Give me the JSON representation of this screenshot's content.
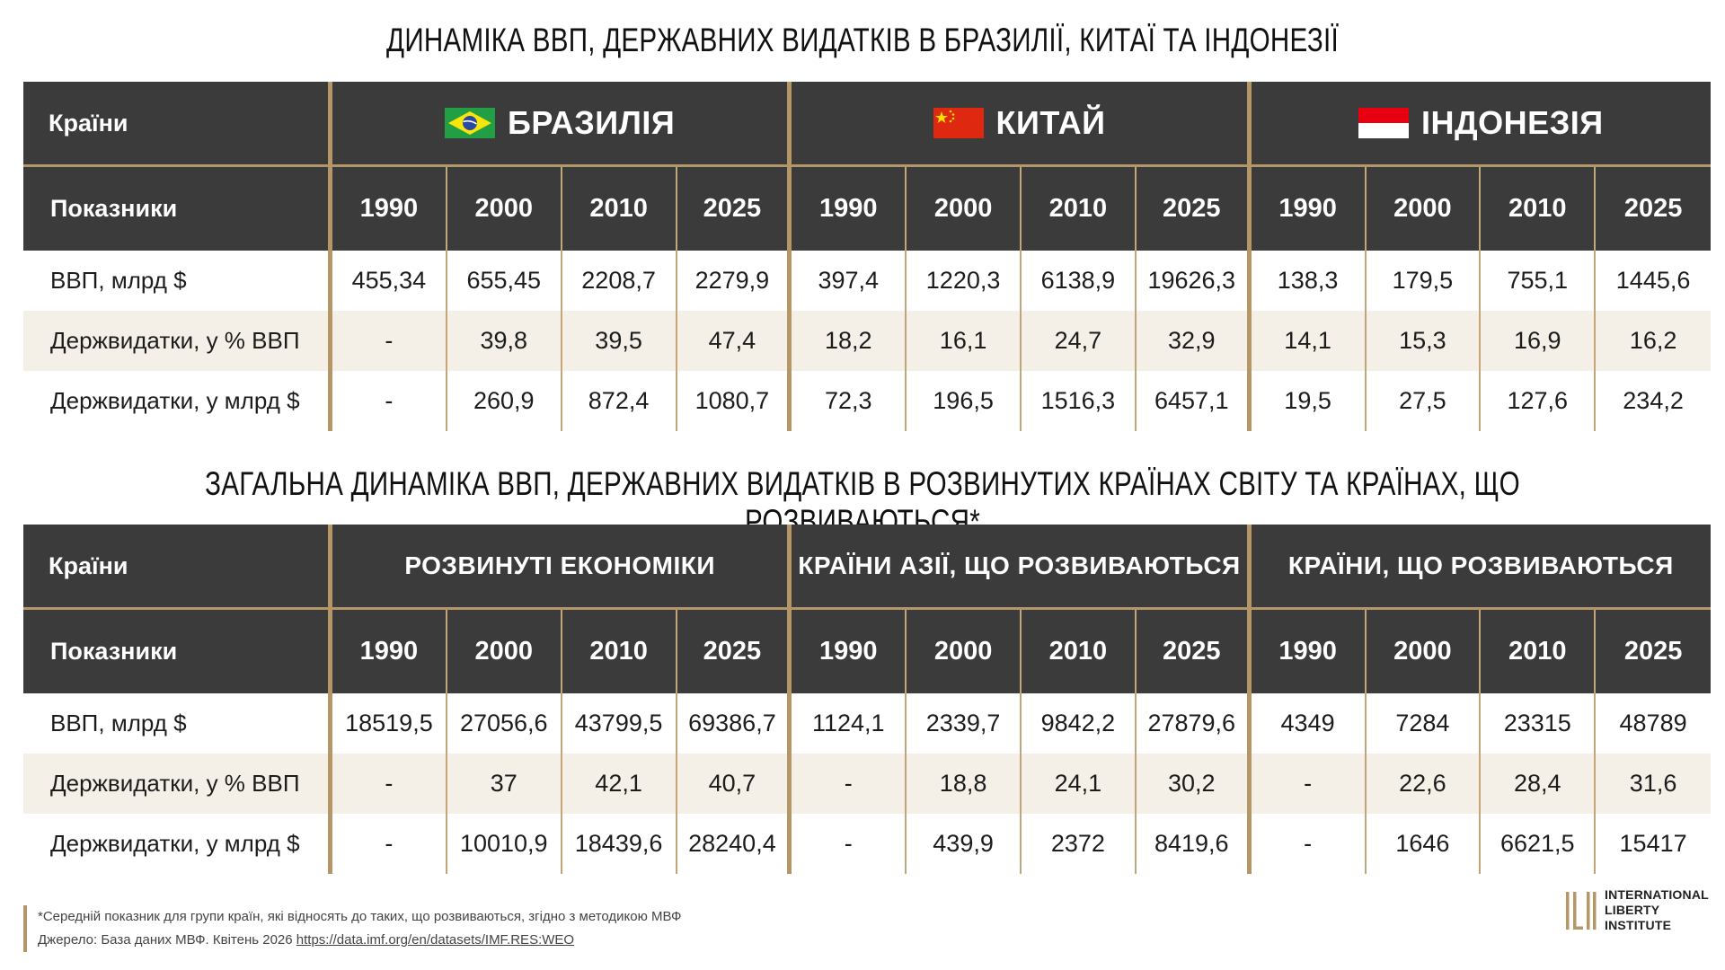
{
  "title1": "ДИНАМІКА ВВП, ДЕРЖАВНИХ ВИДАТКІВ В БРАЗИЛІЇ, КИТАЇ ТА ІНДОНЕЗІЇ",
  "title2": "ЗАГАЛЬНА ДИНАМІКА ВВП, ДЕРЖАВНИХ ВИДАТКІВ В РОЗВИНУТИХ КРАЇНАХ СВІТУ ТА КРАЇНАХ, ЩО РОЗВИВАЮТЬСЯ*",
  "colors": {
    "dark": "#3b3b3b",
    "gold": "#b59667",
    "alt_row": "#f4efe7"
  },
  "table1": {
    "countries_label": "Країни",
    "indicators_label": "Показники",
    "groups": [
      {
        "name": "БРАЗИЛІЯ",
        "flag": "brazil-flag-icon"
      },
      {
        "name": "КИТАЙ",
        "flag": "china-flag-icon"
      },
      {
        "name": "ІНДОНЕЗІЯ",
        "flag": "indonesia-flag-icon"
      }
    ],
    "years": [
      "1990",
      "2000",
      "2010",
      "2025",
      "1990",
      "2000",
      "2010",
      "2025",
      "1990",
      "2000",
      "2010",
      "2025"
    ],
    "rows": [
      {
        "label": "ВВП, млрд $",
        "values": [
          "455,34",
          "655,45",
          "2208,7",
          "2279,9",
          "397,4",
          "1220,3",
          "6138,9",
          "19626,3",
          "138,3",
          "179,5",
          "755,1",
          "1445,6"
        ]
      },
      {
        "label": "Держвидатки, у % ВВП",
        "values": [
          "-",
          "39,8",
          "39,5",
          "47,4",
          "18,2",
          "16,1",
          "24,7",
          "32,9",
          "14,1",
          "15,3",
          "16,9",
          "16,2"
        ]
      },
      {
        "label": "Держвидатки, у млрд $",
        "values": [
          "-",
          "260,9",
          "872,4",
          "1080,7",
          "72,3",
          "196,5",
          "1516,3",
          "6457,1",
          "19,5",
          "27,5",
          "127,6",
          "234,2"
        ]
      }
    ]
  },
  "table2": {
    "countries_label": "Країни",
    "indicators_label": "Показники",
    "groups": [
      {
        "name": "РОЗВИНУТІ ЕКОНОМІКИ"
      },
      {
        "name": "КРАЇНИ АЗІЇ, ЩО РОЗВИВАЮТЬСЯ"
      },
      {
        "name": "КРАЇНИ, ЩО РОЗВИВАЮТЬСЯ"
      }
    ],
    "years": [
      "1990",
      "2000",
      "2010",
      "2025",
      "1990",
      "2000",
      "2010",
      "2025",
      "1990",
      "2000",
      "2010",
      "2025"
    ],
    "rows": [
      {
        "label": "ВВП, млрд $",
        "values": [
          "18519,5",
          "27056,6",
          "43799,5",
          "69386,7",
          "1124,1",
          "2339,7",
          "9842,2",
          "27879,6",
          "4349",
          "7284",
          "23315",
          "48789"
        ]
      },
      {
        "label": "Держвидатки, у % ВВП",
        "values": [
          "-",
          "37",
          "42,1",
          "40,7",
          "-",
          "18,8",
          "24,1",
          "30,2",
          "-",
          "22,6",
          "28,4",
          "31,6"
        ]
      },
      {
        "label": "Держвидатки, у млрд $",
        "values": [
          "-",
          "10010,9",
          "18439,6",
          "28240,4",
          "-",
          "439,9",
          "2372",
          "8419,6",
          "-",
          "1646",
          "6621,5",
          "15417"
        ]
      }
    ]
  },
  "footnote": {
    "note": "*Середній показник для групи країн, які відносять до таких, що розвиваються, згідно з методикою МВФ",
    "source_prefix": "Джерело: База даних МВФ. Квітень 2026 ",
    "source_link": "https://data.imf.org/en/datasets/IMF.RES:WEO"
  },
  "logo": {
    "line1": "INTERNATIONAL",
    "line2": "LIBERTY INSTITUTE",
    "icon": "ili-logo-icon"
  }
}
